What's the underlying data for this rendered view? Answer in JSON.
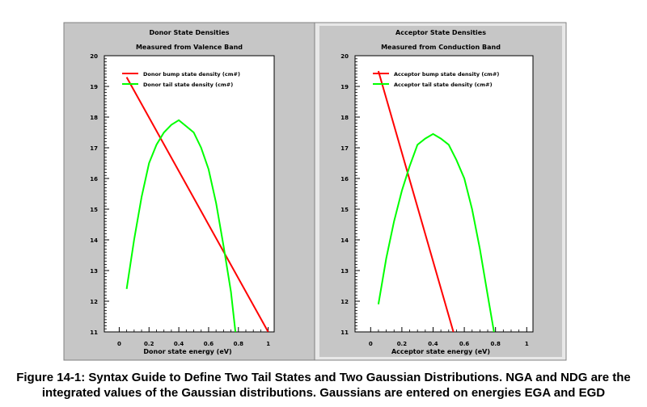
{
  "colors": {
    "panel_bg": "#c6c6c6",
    "plot_bg": "#ffffff",
    "red_series": "#ff0000",
    "green_series": "#00ff00"
  },
  "chart_data": [
    {
      "type": "line",
      "title": "Donor State Densities",
      "subtitle": "Measured from Valence Band",
      "xlabel": "Donor state energy (eV)",
      "ylabel": "",
      "xlim": [
        -0.1,
        1.04
      ],
      "ylim": [
        11,
        20
      ],
      "xticks": [
        0,
        0.2,
        0.4,
        0.6,
        0.8,
        1
      ],
      "xtick_labels": [
        "0",
        "0.2",
        "0.4",
        "0.6",
        "0.8",
        "1"
      ],
      "yticks": [
        11,
        12,
        13,
        14,
        15,
        16,
        17,
        18,
        19,
        20
      ],
      "ytick_labels": [
        "11",
        "12",
        "13",
        "14",
        "15",
        "16",
        "17",
        "18",
        "19",
        "20"
      ],
      "legend_position": "top",
      "series": [
        {
          "name": "Donor bump state density (cm#)",
          "color": "#ff0000",
          "x": [
            0.05,
            1.0
          ],
          "y": [
            19.3,
            11.0
          ]
        },
        {
          "name": "Donor tail state density (cm#)",
          "color": "#00ff00",
          "x": [
            0.05,
            0.1,
            0.15,
            0.2,
            0.25,
            0.3,
            0.35,
            0.4,
            0.45,
            0.5,
            0.55,
            0.6,
            0.65,
            0.7,
            0.75,
            0.78
          ],
          "y": [
            12.4,
            14.0,
            15.4,
            16.5,
            17.1,
            17.5,
            17.75,
            17.9,
            17.7,
            17.5,
            17.0,
            16.3,
            15.2,
            13.8,
            12.3,
            11.0
          ]
        }
      ]
    },
    {
      "type": "line",
      "title": "Acceptor State Densities",
      "subtitle": "Measured from Conduction Band",
      "xlabel": "Acceptor state energy (eV)",
      "ylabel": "",
      "xlim": [
        -0.1,
        1.04
      ],
      "ylim": [
        11,
        20
      ],
      "xticks": [
        0,
        0.2,
        0.4,
        0.6,
        0.8,
        1
      ],
      "xtick_labels": [
        "0",
        "0.2",
        "0.4",
        "0.6",
        "0.8",
        "1"
      ],
      "yticks": [
        11,
        12,
        13,
        14,
        15,
        16,
        17,
        18,
        19,
        20
      ],
      "ytick_labels": [
        "11",
        "12",
        "13",
        "14",
        "15",
        "16",
        "17",
        "18",
        "19",
        "20"
      ],
      "legend_position": "top",
      "series": [
        {
          "name": "Acceptor bump state density (cm#)",
          "color": "#ff0000",
          "x": [
            0.05,
            0.53
          ],
          "y": [
            19.5,
            11.0
          ]
        },
        {
          "name": "Acceptor tail state density (cm#)",
          "color": "#00ff00",
          "x": [
            0.05,
            0.1,
            0.15,
            0.2,
            0.25,
            0.3,
            0.35,
            0.4,
            0.45,
            0.5,
            0.55,
            0.6,
            0.65,
            0.7,
            0.75,
            0.79
          ],
          "y": [
            11.9,
            13.4,
            14.6,
            15.6,
            16.4,
            17.1,
            17.3,
            17.45,
            17.3,
            17.1,
            16.6,
            16.0,
            15.0,
            13.7,
            12.2,
            11.0
          ]
        }
      ]
    }
  ],
  "caption": {
    "line1": "Figure 14-1:  Syntax Guide to Define Two Tail States and Two Gaussian Distributions. NGA and NDG are the",
    "line2": "integrated values of the Gaussian distributions. Gaussians are entered on energies EGA and EGD"
  }
}
